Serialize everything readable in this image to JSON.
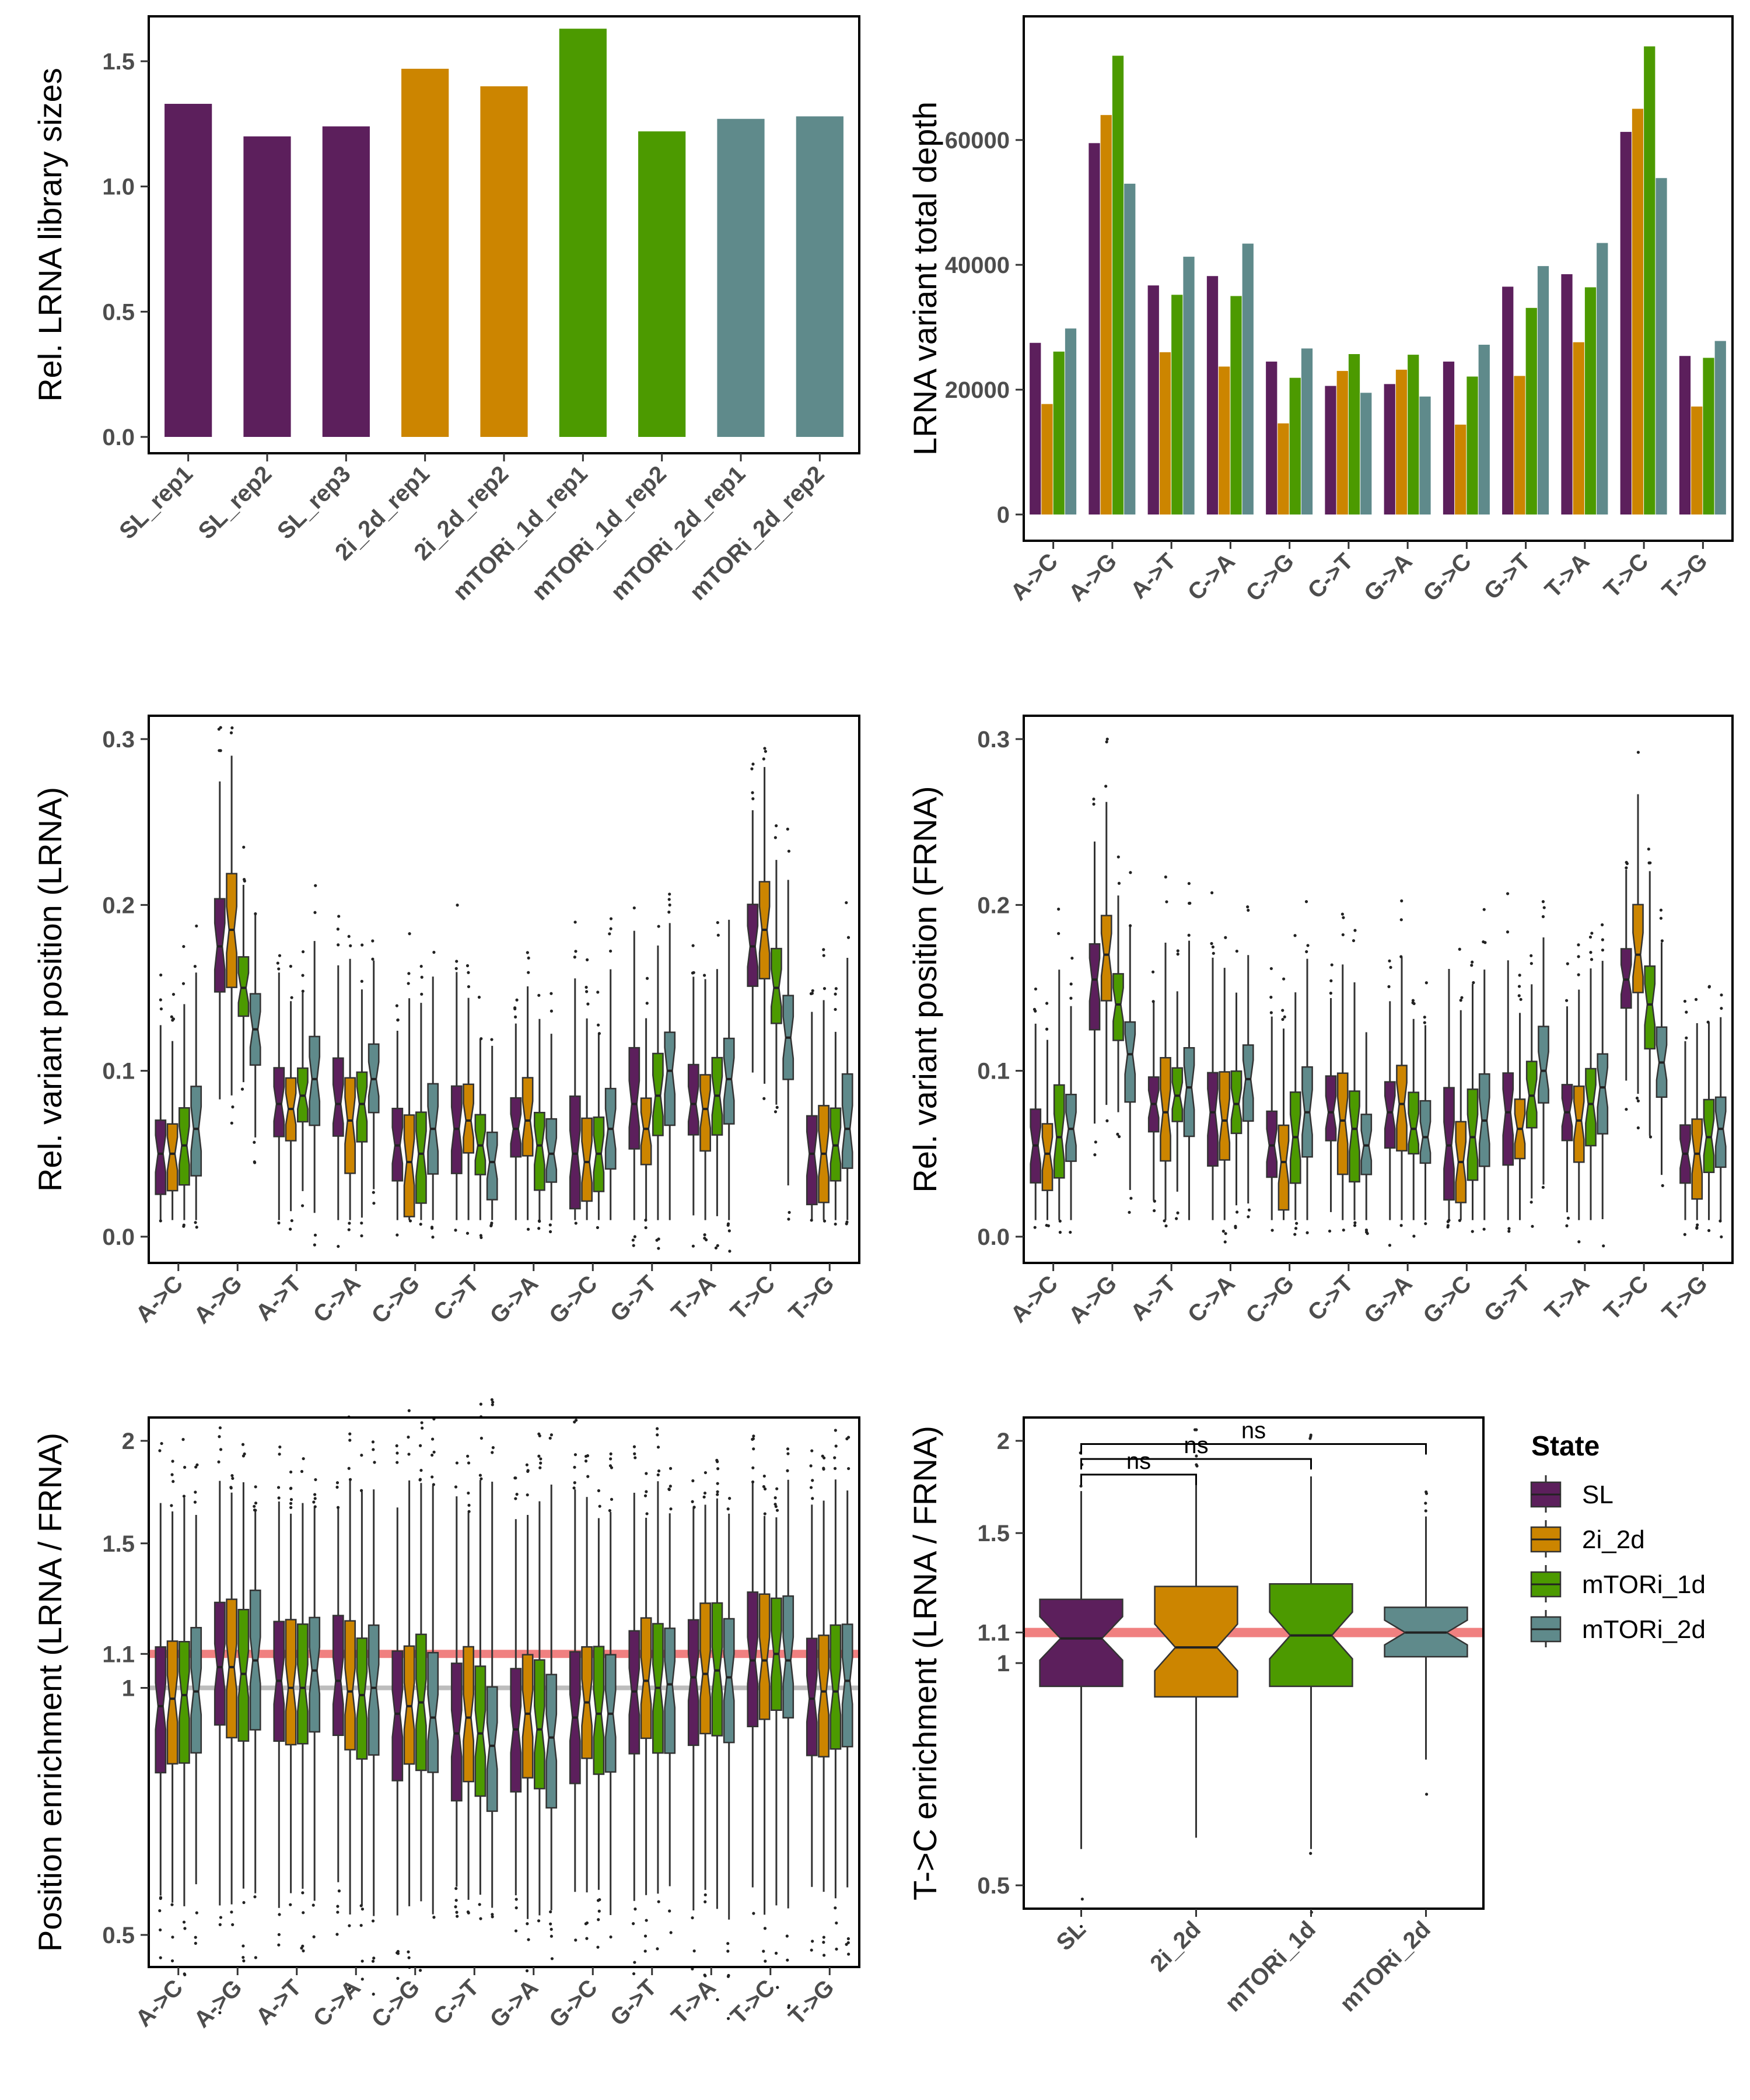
{
  "colors": {
    "SL": "#5c1f5c",
    "2i_2d": "#cc8500",
    "mTORi_1d": "#4c9a00",
    "mTORi_2d": "#5f8a8b",
    "ref_red": "#f08080",
    "ref_gray": "#bdbdbd"
  },
  "legend": {
    "title": "State",
    "items": [
      "SL",
      "2i_2d",
      "mTORi_1d",
      "mTORi_2d"
    ]
  },
  "chart_data": [
    {
      "id": "A",
      "type": "bar",
      "ylabel": "Rel. LRNA library sizes",
      "xlabel": "",
      "ylim": [
        0,
        1.7
      ],
      "yticks": [
        "0.0",
        "0.5",
        "1.0",
        "1.5"
      ],
      "categories": [
        "SL_rep1",
        "SL_rep2",
        "SL_rep3",
        "2i_2d_rep1",
        "2i_2d_rep2",
        "mTORi_1d_rep1",
        "mTORi_1d_rep2",
        "mTORi_2d_rep1",
        "mTORi_2d_rep2"
      ],
      "groups": [
        "SL",
        "SL",
        "SL",
        "2i_2d",
        "2i_2d",
        "mTORi_1d",
        "mTORi_1d",
        "mTORi_2d",
        "mTORi_2d"
      ],
      "values": [
        1.33,
        1.2,
        1.24,
        1.47,
        1.4,
        1.63,
        1.22,
        1.27,
        1.28
      ]
    },
    {
      "id": "B",
      "type": "bar",
      "ylabel": "LRNA variant total depth",
      "xlabel": "",
      "ylim": [
        0,
        78000
      ],
      "yticks": [
        "0",
        "20000",
        "40000",
        "60000"
      ],
      "categories": [
        "A->C",
        "A->G",
        "A->T",
        "C->A",
        "C->G",
        "C->T",
        "G->A",
        "G->C",
        "G->T",
        "T->A",
        "T->C",
        "T->G"
      ],
      "series": [
        {
          "name": "SL",
          "values": [
            27500,
            59500,
            36700,
            38200,
            24500,
            20600,
            20900,
            24500,
            36500,
            38500,
            61300,
            25400
          ]
        },
        {
          "name": "2i_2d",
          "values": [
            17700,
            64000,
            26000,
            23700,
            14600,
            23000,
            23200,
            14400,
            22200,
            27600,
            65000,
            17300
          ]
        },
        {
          "name": "mTORi_1d",
          "values": [
            26100,
            73500,
            35200,
            35000,
            21900,
            25700,
            25600,
            22100,
            33100,
            36400,
            75000,
            25100
          ]
        },
        {
          "name": "mTORi_2d",
          "values": [
            29800,
            53000,
            41300,
            43400,
            26600,
            19500,
            18900,
            27200,
            39800,
            43500,
            53900,
            27800
          ]
        }
      ]
    },
    {
      "id": "C",
      "type": "box",
      "ylabel": "Rel. variant position (LRNA)",
      "xlabel": "",
      "ylim": [
        -0.01,
        0.305
      ],
      "yticks": [
        "0.0",
        "0.1",
        "0.2",
        "0.3"
      ],
      "categories": [
        "A->C",
        "A->G",
        "A->T",
        "C->A",
        "C->G",
        "C->T",
        "G->A",
        "G->C",
        "G->T",
        "T->A",
        "T->C",
        "T->G"
      ],
      "medians": [
        [
          0.05,
          0.05,
          0.055,
          0.065
        ],
        [
          0.175,
          0.185,
          0.15,
          0.125
        ],
        [
          0.08,
          0.077,
          0.085,
          0.095
        ],
        [
          0.08,
          0.07,
          0.08,
          0.095
        ],
        [
          0.055,
          0.045,
          0.05,
          0.065
        ],
        [
          0.065,
          0.07,
          0.055,
          0.045
        ],
        [
          0.065,
          0.07,
          0.055,
          0.05
        ],
        [
          0.05,
          0.045,
          0.05,
          0.065
        ],
        [
          0.08,
          0.065,
          0.085,
          0.1
        ],
        [
          0.08,
          0.077,
          0.085,
          0.095
        ],
        [
          0.175,
          0.185,
          0.15,
          0.12
        ],
        [
          0.05,
          0.05,
          0.055,
          0.065
        ]
      ]
    },
    {
      "id": "D",
      "type": "box",
      "ylabel": "Rel. variant position (FRNA)",
      "xlabel": "",
      "ylim": [
        -0.01,
        0.305
      ],
      "yticks": [
        "0.0",
        "0.1",
        "0.2",
        "0.3"
      ],
      "categories": [
        "A->C",
        "A->G",
        "A->T",
        "C->A",
        "C->G",
        "C->T",
        "G->A",
        "G->C",
        "G->T",
        "T->A",
        "T->C",
        "T->G"
      ],
      "medians": [
        [
          0.055,
          0.05,
          0.06,
          0.065
        ],
        [
          0.155,
          0.17,
          0.14,
          0.11
        ],
        [
          0.08,
          0.075,
          0.085,
          0.09
        ],
        [
          0.075,
          0.07,
          0.08,
          0.095
        ],
        [
          0.055,
          0.045,
          0.06,
          0.075
        ],
        [
          0.075,
          0.07,
          0.065,
          0.055
        ],
        [
          0.075,
          0.08,
          0.065,
          0.06
        ],
        [
          0.055,
          0.045,
          0.06,
          0.07
        ],
        [
          0.075,
          0.065,
          0.085,
          0.1
        ],
        [
          0.075,
          0.07,
          0.08,
          0.09
        ],
        [
          0.155,
          0.17,
          0.14,
          0.105
        ],
        [
          0.05,
          0.05,
          0.06,
          0.065
        ]
      ]
    },
    {
      "id": "E",
      "type": "box",
      "ylabel": "Position enrichment (LRNA / FRNA)",
      "xlabel": "",
      "ylim": [
        0.47,
        2.08
      ],
      "yscale": "log",
      "yticks": [
        "0.5",
        "1",
        "1.1",
        "1.5",
        "2"
      ],
      "hlines": [
        {
          "y": 1.1,
          "color": "ref_red"
        },
        {
          "y": 1.0,
          "color": "ref_gray"
        }
      ],
      "categories": [
        "A->C",
        "A->G",
        "A->T",
        "C->A",
        "C->G",
        "C->T",
        "G->A",
        "G->C",
        "G->T",
        "T->A",
        "T->C",
        "T->G"
      ],
      "medians": [
        [
          0.95,
          0.97,
          0.98,
          0.99
        ],
        [
          1.06,
          1.06,
          1.04,
          1.08
        ],
        [
          1.02,
          1.0,
          1.0,
          1.05
        ],
        [
          1.02,
          0.99,
          0.98,
          1.0
        ],
        [
          0.93,
          0.95,
          0.96,
          0.92
        ],
        [
          0.88,
          0.92,
          0.88,
          0.85
        ],
        [
          0.89,
          0.93,
          0.89,
          0.87
        ],
        [
          0.92,
          0.96,
          0.93,
          0.93
        ],
        [
          0.99,
          1.02,
          1.0,
          1.01
        ],
        [
          1.03,
          1.04,
          1.05,
          1.03
        ],
        [
          1.08,
          1.08,
          1.1,
          1.08
        ],
        [
          0.97,
          0.99,
          0.99,
          1.02
        ]
      ]
    },
    {
      "id": "F",
      "type": "box",
      "ylabel": "T->C enrichment (LRNA / FRNA)",
      "xlabel": "",
      "ylim": [
        0.47,
        2.06
      ],
      "yscale": "log",
      "yticks": [
        "0.5",
        "1",
        "1.1",
        "1.5",
        "2"
      ],
      "hlines": [
        {
          "y": 1.1,
          "color": "ref_red"
        }
      ],
      "categories": [
        "SL",
        "2i_2d",
        "mTORi_1d",
        "mTORi_2d"
      ],
      "medians": [
        1.08,
        1.05,
        1.09,
        1.1
      ],
      "q1": [
        0.93,
        0.9,
        0.93,
        1.02
      ],
      "q3": [
        1.22,
        1.27,
        1.28,
        1.19
      ],
      "whisker_low": [
        0.56,
        0.58,
        0.56,
        0.74
      ],
      "whisker_high": [
        1.71,
        1.8,
        1.79,
        1.58
      ],
      "significance": [
        {
          "from": "SL",
          "to": "2i_2d",
          "label": "ns"
        },
        {
          "from": "SL",
          "to": "mTORi_1d",
          "label": "ns"
        },
        {
          "from": "SL",
          "to": "mTORi_2d",
          "label": "ns"
        }
      ]
    }
  ]
}
